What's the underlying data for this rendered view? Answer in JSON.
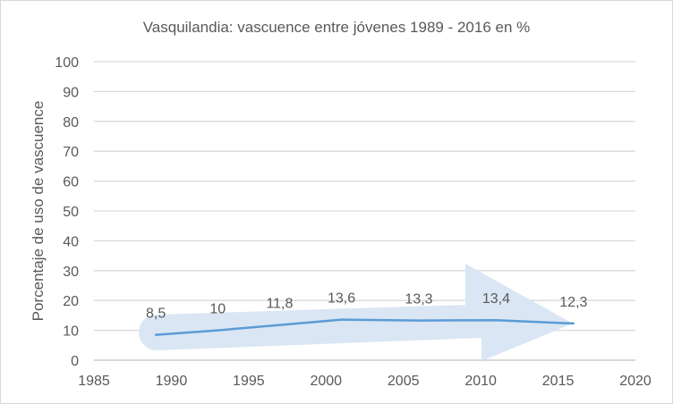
{
  "chart_data": {
    "type": "line",
    "title": "Vasquilandia: vascuence entre jóvenes 1989 - 2016 en %",
    "xlabel": "",
    "ylabel": "Porcentaje de uso de vascuence",
    "xlim": [
      1985,
      2020
    ],
    "ylim": [
      0,
      100
    ],
    "x_ticks": [
      1985,
      1990,
      1995,
      2000,
      2005,
      2010,
      2015,
      2020
    ],
    "y_ticks": [
      0,
      10,
      20,
      30,
      40,
      50,
      60,
      70,
      80,
      90,
      100
    ],
    "grid": true,
    "series": [
      {
        "name": "Vascuence",
        "color": "#5b9bd5",
        "x": [
          1989,
          1993,
          1997,
          2001,
          2006,
          2011,
          2016
        ],
        "y": [
          8.5,
          10,
          11.8,
          13.6,
          13.3,
          13.4,
          12.3
        ],
        "labels": [
          "8,5",
          "10",
          "11,8",
          "13,6",
          "13,3",
          "13,4",
          "12,3"
        ]
      }
    ],
    "decoration_color": "#dae6f4"
  }
}
